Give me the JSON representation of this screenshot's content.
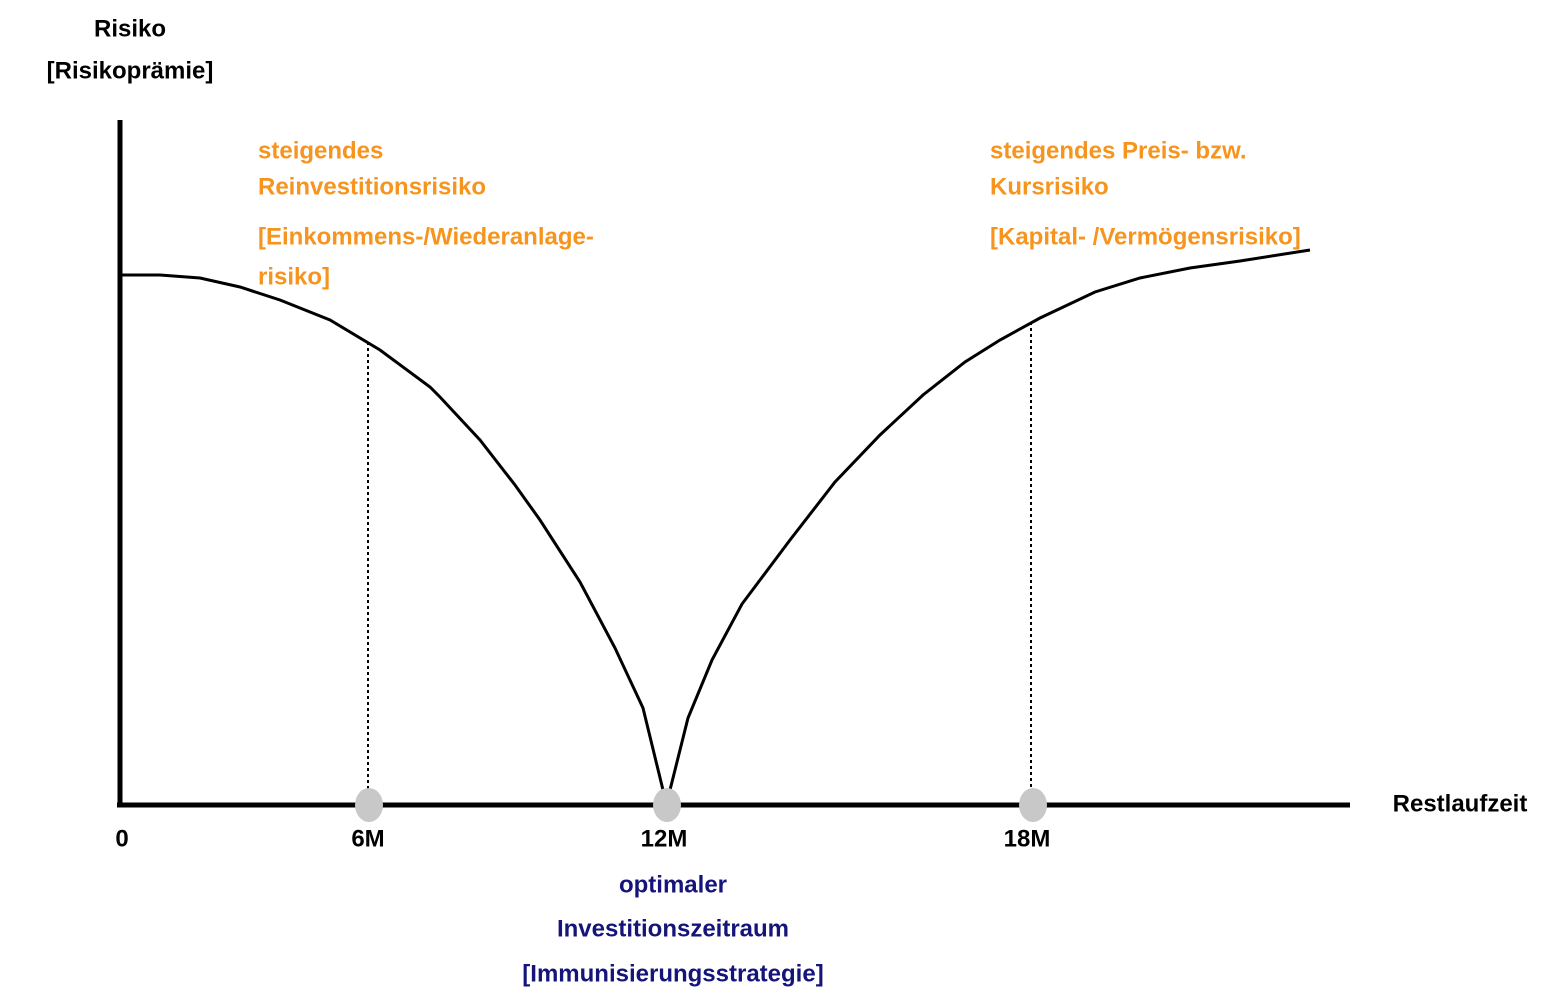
{
  "y_axis_label": [
    "Risiko",
    "[Risikoprämie]"
  ],
  "x_axis_label": "Restlaufzeit",
  "x_ticks": [
    "0",
    "6M",
    "12M",
    "18M"
  ],
  "annotations": {
    "left": [
      "steigendes",
      "Reinvestitionsrisiko",
      "[Einkommens-/Wiederanlage-",
      "risiko]"
    ],
    "right": [
      "steigendes Preis- bzw.",
      "Kursrisiko",
      "[Kapital- /Vermögensrisiko]"
    ],
    "bottom": [
      "optimaler",
      "Investitionszeitraum",
      "[Immunisierungsstrategie]"
    ]
  }
}
